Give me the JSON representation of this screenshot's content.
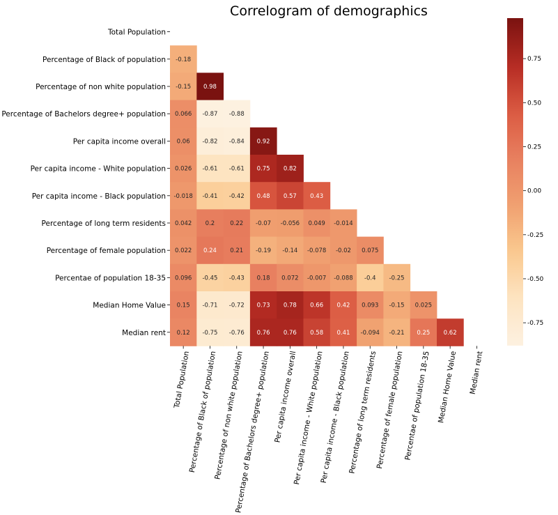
{
  "chart_data": {
    "type": "heatmap",
    "title": "Correlogram of demographics",
    "variables": [
      "Total Population",
      "Percentage of Black of population",
      "Percentage of non white population",
      "Percentage of Bachelors degree+ population",
      "Per capita income overall",
      "Per capita income - White population",
      "Per capita income - Black population",
      "Percentage of long term residents",
      "Percentage of female population",
      "Percentae of population 18-35",
      "Median Home Value",
      "Median rent"
    ],
    "matrix": [
      [],
      [
        "-0.18"
      ],
      [
        "-0.15",
        "0.98"
      ],
      [
        "0.066",
        "-0.87",
        "-0.88"
      ],
      [
        "0.06",
        "-0.82",
        "-0.84",
        "0.92"
      ],
      [
        "0.026",
        "-0.61",
        "-0.61",
        "0.75",
        "0.82"
      ],
      [
        "-0.018",
        "-0.41",
        "-0.42",
        "0.48",
        "0.57",
        "0.43"
      ],
      [
        "0.042",
        "0.2",
        "0.22",
        "-0.07",
        "-0.056",
        "0.049",
        "-0.014"
      ],
      [
        "0.022",
        "0.24",
        "0.21",
        "-0.19",
        "-0.14",
        "-0.078",
        "-0.02",
        "0.075"
      ],
      [
        "0.096",
        "-0.45",
        "-0.43",
        "0.18",
        "0.072",
        "-0.007",
        "-0.088",
        "-0.4",
        "-0.25"
      ],
      [
        "0.15",
        "-0.71",
        "-0.72",
        "0.73",
        "0.78",
        "0.66",
        "0.42",
        "0.093",
        "-0.15",
        "0.025"
      ],
      [
        "0.12",
        "-0.75",
        "-0.76",
        "0.76",
        "0.76",
        "0.58",
        "0.41",
        "-0.094",
        "-0.21",
        "0.25",
        "0.62"
      ]
    ],
    "mask": "upper-triangle",
    "colormap": "OrRd",
    "vmin": -0.88,
    "vmax": 0.98,
    "colorbar_ticks": [
      "0.75",
      "0.50",
      "0.25",
      "0.00",
      "-0.25",
      "-0.50",
      "-0.75"
    ],
    "colorbar_tick_values": [
      0.75,
      0.5,
      0.25,
      0,
      -0.25,
      -0.5,
      -0.75
    ],
    "colors": [
      "#fdf1e0",
      "#fde4c2",
      "#fac98f",
      "#f0a070",
      "#e88060",
      "#db5a42",
      "#b52b23",
      "#7a1210"
    ]
  }
}
